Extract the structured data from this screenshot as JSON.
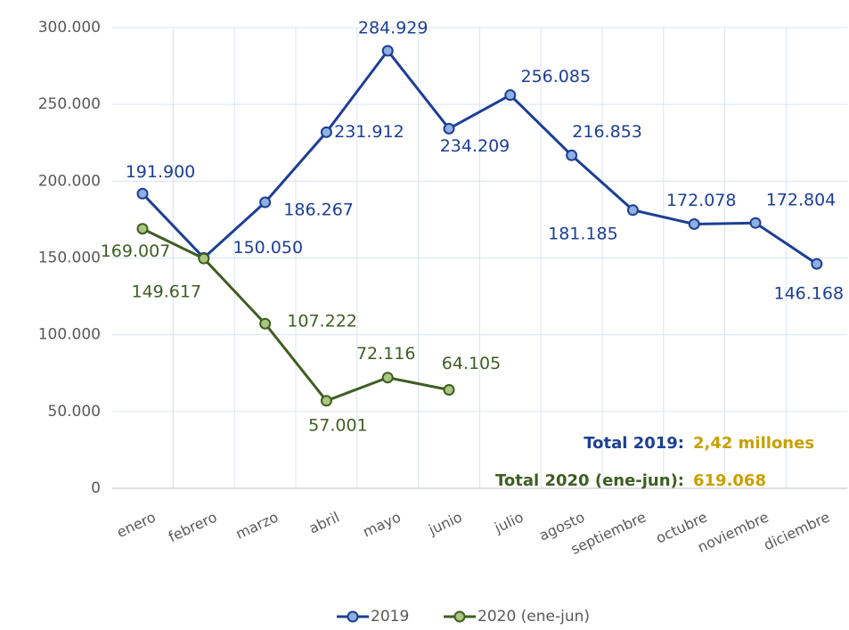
{
  "chart_data": {
    "type": "line",
    "categories": [
      "enero",
      "febrero",
      "marzo",
      "abril",
      "mayo",
      "junio",
      "julio",
      "agosto",
      "septiembre",
      "octubre",
      "noviembre",
      "diciembre"
    ],
    "series": [
      {
        "name": "2019",
        "color": "#1c3f94",
        "marker_color": "#8fb0e0",
        "values": [
          191900,
          150050,
          186267,
          231912,
          284929,
          234209,
          256085,
          216853,
          181185,
          172078,
          172804,
          146168
        ],
        "value_labels": [
          "191.900",
          "150.050",
          "186.267",
          "231.912",
          "284.929",
          "234.209",
          "256.085",
          "216.853",
          "181.185",
          "172.078",
          "172.804",
          "146.168"
        ]
      },
      {
        "name": "2020 (ene-jun)",
        "color": "#3e5e22",
        "marker_color": "#a9c77f",
        "values": [
          169007,
          149617,
          107222,
          57001,
          72116,
          64105,
          null,
          null,
          null,
          null,
          null,
          null
        ],
        "value_labels": [
          "169.007",
          "149.617",
          "107.222",
          "57.001",
          "72.116",
          "64.105",
          null,
          null,
          null,
          null,
          null,
          null
        ]
      }
    ],
    "ylim": [
      0,
      300000
    ],
    "yticks": [
      0,
      {
        "value": 50000,
        "label": "50.000"
      },
      {
        "value": 100000,
        "label": "100.000"
      },
      {
        "value": 150000,
        "label": "150.000"
      },
      {
        "value": 200000,
        "label": "200.000"
      },
      {
        "value": 250000,
        "label": "250.000"
      },
      {
        "value": 300000,
        "label": "300.000"
      }
    ],
    "grid": true,
    "legend": "bottom",
    "annotations": [
      {
        "label": "Total 2019:",
        "value": "2,42 millones"
      },
      {
        "label": "Total 2020 (ene-jun):",
        "value": "619.068"
      }
    ],
    "annotation_value_color": "#c8a000"
  }
}
